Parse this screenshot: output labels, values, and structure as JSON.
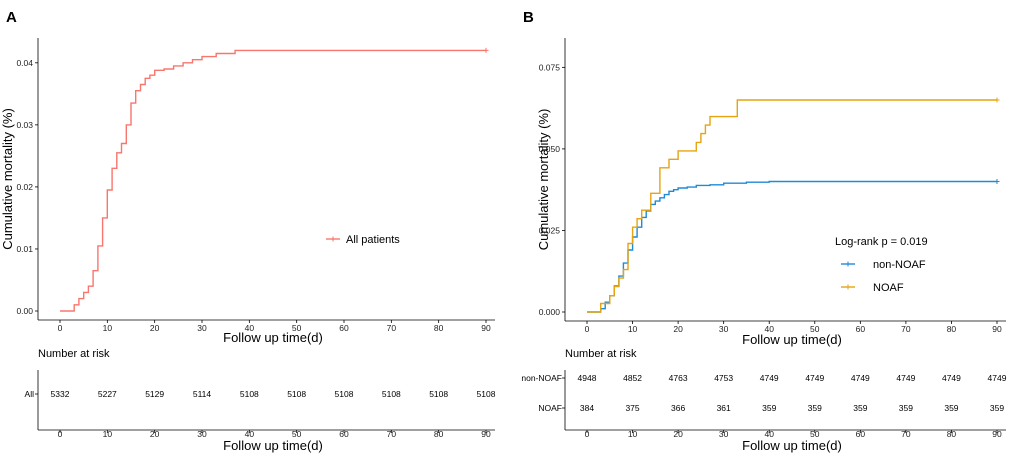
{
  "chart_data": [
    {
      "panel_label": "A",
      "type": "line",
      "title": "",
      "xlabel": "Follow up time(d)",
      "ylabel": "Cumulative mortality (%)",
      "xlim": [
        0,
        90
      ],
      "ylim": [
        0,
        0.044
      ],
      "x_ticks": [
        "0",
        "10",
        "20",
        "30",
        "40",
        "50",
        "60",
        "70",
        "80",
        "90"
      ],
      "y_ticks": [
        "0.00",
        "0.01",
        "0.02",
        "0.03",
        "0.04"
      ],
      "legend": {
        "placement": "center-right",
        "stat_text": ""
      },
      "series": [
        {
          "name": "All patients",
          "color": "#f8766d",
          "x": [
            0,
            3,
            4,
            5,
            6,
            7,
            8,
            9,
            10,
            11,
            12,
            13,
            14,
            15,
            16,
            17,
            18,
            19,
            20,
            22,
            24,
            26,
            28,
            30,
            33,
            37,
            90
          ],
          "y": [
            0,
            0.001,
            0.002,
            0.003,
            0.004,
            0.0065,
            0.0105,
            0.015,
            0.0195,
            0.023,
            0.0255,
            0.027,
            0.03,
            0.0335,
            0.0355,
            0.0365,
            0.0375,
            0.038,
            0.0388,
            0.039,
            0.0395,
            0.04,
            0.0405,
            0.041,
            0.0415,
            0.042,
            0.042
          ]
        }
      ],
      "risk_table": {
        "title": "Number at risk",
        "rows": [
          {
            "label": "All",
            "values": [
              "5332",
              "5227",
              "5129",
              "5114",
              "5108",
              "5108",
              "5108",
              "5108",
              "5108",
              "5108"
            ]
          }
        ]
      }
    },
    {
      "panel_label": "B",
      "type": "line",
      "title": "",
      "xlabel": "Follow up time(d)",
      "ylabel": "Cumulative mortality (%)",
      "xlim": [
        0,
        90
      ],
      "ylim": [
        0,
        0.084
      ],
      "x_ticks": [
        "0",
        "10",
        "20",
        "30",
        "40",
        "50",
        "60",
        "70",
        "80",
        "90"
      ],
      "y_ticks": [
        "0.000",
        "0.025",
        "0.050",
        "0.075"
      ],
      "legend": {
        "placement": "center-right",
        "stat_text": "Log-rank   p = 0.019"
      },
      "series": [
        {
          "name": "non-NOAF",
          "color": "#1f8ad8",
          "x": [
            0,
            3,
            4,
            5,
            6,
            7,
            8,
            9,
            10,
            11,
            12,
            13,
            14,
            15,
            16,
            17,
            18,
            19,
            20,
            22,
            24,
            27,
            30,
            35,
            40,
            90
          ],
          "y": [
            0,
            0.001,
            0.003,
            0.005,
            0.008,
            0.011,
            0.015,
            0.019,
            0.023,
            0.026,
            0.029,
            0.031,
            0.033,
            0.034,
            0.035,
            0.036,
            0.037,
            0.0375,
            0.038,
            0.0383,
            0.0388,
            0.039,
            0.0395,
            0.0398,
            0.04,
            0.04
          ]
        },
        {
          "name": "NOAF",
          "color": "#e5a410",
          "x": [
            0,
            3,
            5,
            6,
            7,
            8,
            9,
            10,
            11,
            12,
            14,
            16,
            18,
            20,
            24,
            25,
            26,
            27,
            28,
            30,
            33,
            90
          ],
          "y": [
            0,
            0.0026,
            0.005,
            0.0078,
            0.0104,
            0.013,
            0.021,
            0.026,
            0.0286,
            0.0312,
            0.0364,
            0.0442,
            0.0468,
            0.0494,
            0.052,
            0.0547,
            0.0573,
            0.0599,
            0.0599,
            0.0599,
            0.065,
            0.065
          ]
        }
      ],
      "risk_table": {
        "title": "Number at risk",
        "rows": [
          {
            "label": "non-NOAF",
            "values": [
              "4948",
              "4852",
              "4763",
              "4753",
              "4749",
              "4749",
              "4749",
              "4749",
              "4749",
              "4749"
            ]
          },
          {
            "label": "NOAF",
            "values": [
              "384",
              "375",
              "366",
              "361",
              "359",
              "359",
              "359",
              "359",
              "359",
              "359"
            ]
          }
        ]
      }
    }
  ]
}
